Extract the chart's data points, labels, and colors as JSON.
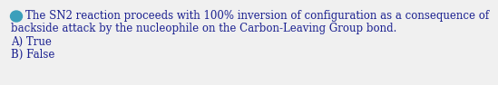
{
  "line1": "The SN2 reaction proceeds with 100% inversion of configuration as a consequence of",
  "line2": "backside attack by the nucleophile on the Carbon-Leaving Group bond.",
  "line3": "A) True",
  "line4": "B) False",
  "text_color": "#1a2090",
  "bullet_color": "#3a9fbb",
  "background_color": "#f0f0f0",
  "font_size": 8.5,
  "font_family": "serif"
}
